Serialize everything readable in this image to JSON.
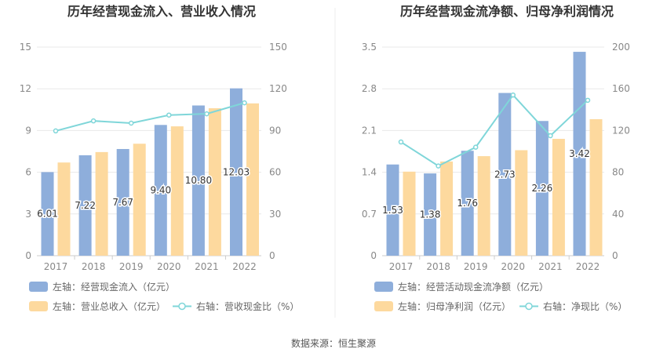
{
  "source": "数据来源：恒生聚源",
  "colors": {
    "bar_left": "#8eaedb",
    "bar_right": "#fdd99e",
    "line": "#7fd6d9",
    "grid": "#e8e8e8",
    "axis": "#cccccc",
    "divider": "#eeeeee"
  },
  "chart_data": [
    {
      "type": "bar",
      "title": "历年经营现金流入、营业收入情况",
      "categories": [
        "2017",
        "2018",
        "2019",
        "2020",
        "2021",
        "2022"
      ],
      "left_axis": {
        "min": 0,
        "max": 15,
        "ticks": [
          "0",
          "3",
          "6",
          "9",
          "12",
          "15"
        ]
      },
      "right_axis": {
        "min": 0,
        "max": 150,
        "ticks": [
          "0",
          "30",
          "60",
          "90",
          "120",
          "150"
        ]
      },
      "series": [
        {
          "name": "左轴：经营现金流入（亿元）",
          "kind": "bar",
          "axis": "left",
          "values": [
            6.01,
            7.22,
            7.67,
            9.4,
            10.8,
            12.03
          ],
          "labels": [
            "6.01",
            "7.22",
            "7.67",
            "9.40",
            "10.80",
            "12.03"
          ]
        },
        {
          "name": "左轴：营业总收入（亿元）",
          "kind": "bar",
          "axis": "left",
          "values": [
            6.7,
            7.45,
            8.05,
            9.3,
            10.6,
            10.95
          ]
        },
        {
          "name": "右轴：营收现金比（%）",
          "kind": "line",
          "axis": "right",
          "values": [
            89.7,
            96.9,
            95.3,
            101.1,
            102.0,
            109.9
          ]
        }
      ],
      "grid": true,
      "legend_position": "bottom"
    },
    {
      "type": "bar",
      "title": "历年经营现金流净额、归母净利润情况",
      "categories": [
        "2017",
        "2018",
        "2019",
        "2020",
        "2021",
        "2022"
      ],
      "left_axis": {
        "min": 0,
        "max": 3.5,
        "ticks": [
          "0",
          "0.7",
          "1.4",
          "2.1",
          "2.8",
          "3.5"
        ]
      },
      "right_axis": {
        "min": 0,
        "max": 200,
        "ticks": [
          "0",
          "40",
          "80",
          "120",
          "160",
          "200"
        ]
      },
      "series": [
        {
          "name": "左轴：经营活动现金流净额（亿元）",
          "kind": "bar",
          "axis": "left",
          "values": [
            1.53,
            1.38,
            1.76,
            2.73,
            2.26,
            3.42
          ],
          "labels": [
            "1.53",
            "1.38",
            "1.76",
            "2.73",
            "2.26",
            "3.42"
          ]
        },
        {
          "name": "左轴：归母净利润（亿元）",
          "kind": "bar",
          "axis": "left",
          "values": [
            1.41,
            1.58,
            1.67,
            1.77,
            1.96,
            2.29
          ]
        },
        {
          "name": "右轴：净现比（%）",
          "kind": "line",
          "axis": "right",
          "values": [
            109,
            86,
            104,
            154,
            115,
            149
          ]
        }
      ],
      "grid": true,
      "legend_position": "bottom"
    }
  ]
}
